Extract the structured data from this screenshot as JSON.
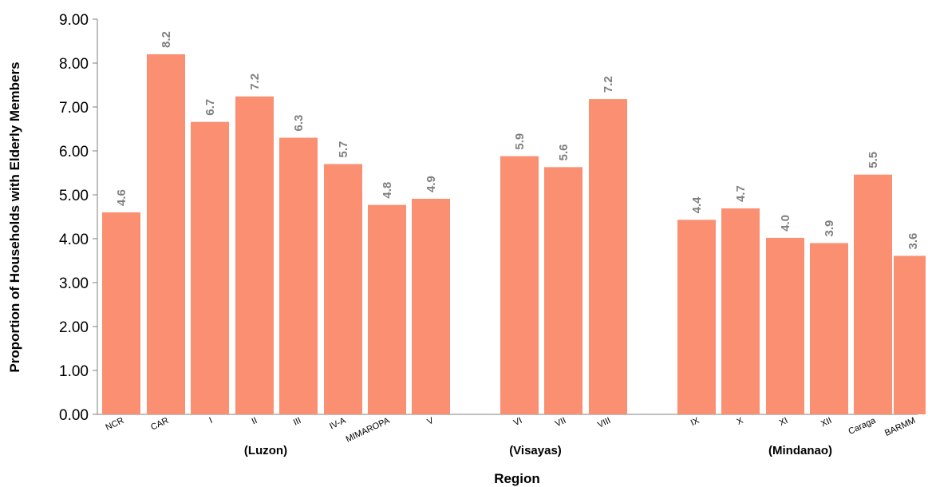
{
  "chart_data": {
    "type": "bar",
    "categories": [
      "NCR",
      "CAR",
      "I",
      "II",
      "III",
      "IV-A",
      "MIMAROPA",
      "V",
      "VI",
      "VII",
      "VIII",
      "IX",
      "X",
      "XI",
      "XII",
      "Caraga",
      "BARMM"
    ],
    "values": [
      4.6,
      8.2,
      6.66,
      7.24,
      6.3,
      5.7,
      4.77,
      4.91,
      5.88,
      5.63,
      7.18,
      4.43,
      4.69,
      4.02,
      3.9,
      5.46,
      3.61
    ],
    "data_labels": [
      "4.6",
      "8.2",
      "6.7",
      "7.2",
      "6.3",
      "5.7",
      "4.8",
      "4.9",
      "5.9",
      "5.6",
      "7.2",
      "4.4",
      "4.7",
      "4.0",
      "3.9",
      "5.5",
      "3.6"
    ],
    "groups": [
      {
        "label": "(Luzon)",
        "categories": [
          "NCR",
          "CAR",
          "I",
          "II",
          "III",
          "IV-A",
          "MIMAROPA",
          "V"
        ]
      },
      {
        "label": "(Visayas)",
        "categories": [
          "VI",
          "VII",
          "VIII"
        ]
      },
      {
        "label": "(Mindanao)",
        "categories": [
          "IX",
          "X",
          "XI",
          "XII",
          "Caraga",
          "BARMM"
        ]
      }
    ],
    "y_ticks": [
      "0.00",
      "1.00",
      "2.00",
      "3.00",
      "4.00",
      "5.00",
      "6.00",
      "7.00",
      "8.00",
      "9.00"
    ],
    "ylim": [
      0,
      9
    ],
    "xlabel": "Region",
    "ylabel": "Proportion of Households with Elderly Members",
    "grid": false,
    "legend": "none",
    "colors": {
      "bar": "#FA8F72",
      "data_label": "#808080",
      "axis": "#808080"
    }
  }
}
